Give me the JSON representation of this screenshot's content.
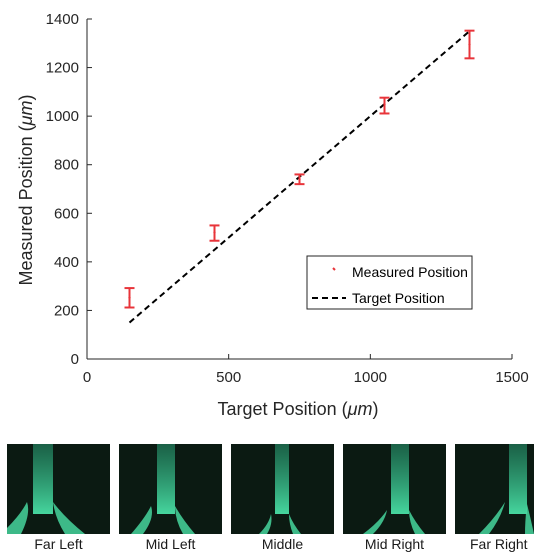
{
  "chart_data": {
    "type": "scatter",
    "xlabel_text": "Target Position (",
    "xlabel_unit": "μm",
    "xlabel_close": ")",
    "ylabel_text": "Measured Position (",
    "ylabel_unit": "μm",
    "ylabel_close": ")",
    "xlim": [
      0,
      1500
    ],
    "ylim": [
      0,
      1400
    ],
    "xticks": [
      0,
      500,
      1000,
      1500
    ],
    "yticks": [
      0,
      200,
      400,
      600,
      800,
      1000,
      1200,
      1400
    ],
    "legend_position": "lower-right",
    "series": [
      {
        "name": "Measured Position",
        "kind": "errorbar",
        "color": "#e8343a",
        "x": [
          150,
          450,
          750,
          1050,
          1350
        ],
        "y": [
          252,
          522,
          740,
          1048,
          1295
        ],
        "yerr_low": [
          40,
          35,
          20,
          37,
          57
        ],
        "yerr_high": [
          40,
          28,
          20,
          28,
          57
        ]
      },
      {
        "name": "Target Position",
        "kind": "dashed-line",
        "color": "#000000",
        "x": [
          150,
          1350
        ],
        "y": [
          150,
          1350
        ]
      }
    ]
  },
  "panels": [
    {
      "label": "Far Left",
      "stripe": "far-left"
    },
    {
      "label": "Mid Left",
      "stripe": "mid-left"
    },
    {
      "label": "Middle",
      "stripe": "middle"
    },
    {
      "label": "Mid Right",
      "stripe": "mid-right"
    },
    {
      "label": "Far Right",
      "stripe": "far-right"
    }
  ],
  "colors": {
    "stream": "#46d69e",
    "stream_edge": "#2aa77a",
    "panel_background": "#0b1a12"
  }
}
